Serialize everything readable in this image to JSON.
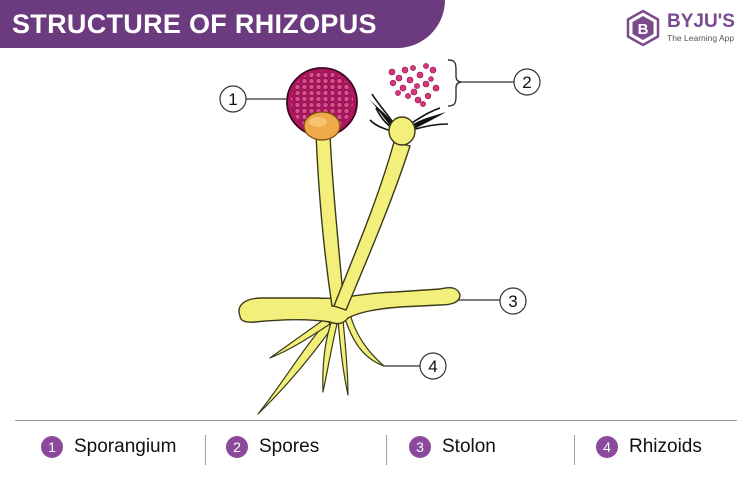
{
  "title": "STRUCTURE OF RHIZOPUS",
  "brand": {
    "name": "BYJU'S",
    "tagline": "The Learning App",
    "mark_letter": "B"
  },
  "callouts": [
    "1",
    "2",
    "3",
    "4"
  ],
  "legend": [
    {
      "number": "1",
      "label": "Sporangium"
    },
    {
      "number": "2",
      "label": "Spores"
    },
    {
      "number": "3",
      "label": "Stolon"
    },
    {
      "number": "4",
      "label": "Rhizoids"
    }
  ],
  "colors": {
    "banner": "#6c3a7e",
    "hypha": "#f2f07a",
    "sporangium": "#b0155f",
    "columella": "#f0a948",
    "spores": "#d9347f",
    "legend_badge": "#8b4a9c"
  }
}
